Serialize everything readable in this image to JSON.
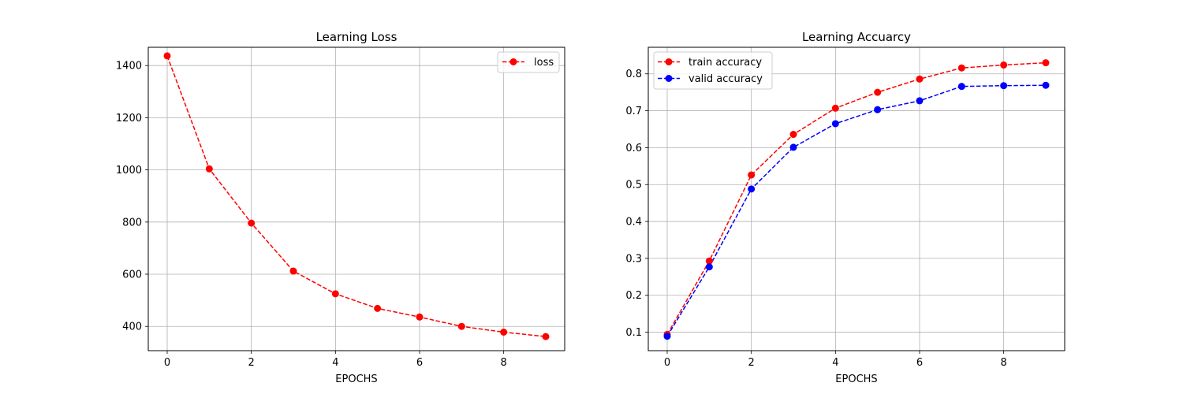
{
  "colors": {
    "red": "#ff0000",
    "blue": "#0000ff",
    "grid": "#b0b0b0"
  },
  "chart_data": [
    {
      "type": "line",
      "title": "Learning Loss",
      "xlabel": "EPOCHS",
      "ylabel": "",
      "x": [
        0,
        1,
        2,
        3,
        4,
        5,
        6,
        7,
        8,
        9
      ],
      "xlim": [
        -0.45,
        9.45
      ],
      "ylim": [
        307,
        1470
      ],
      "xticks": [
        0,
        2,
        4,
        6,
        8
      ],
      "yticks": [
        400,
        600,
        800,
        1000,
        1200,
        1400
      ],
      "grid": true,
      "legend_position": "upper right",
      "series": [
        {
          "name": "loss",
          "color": "#ff0000",
          "line_style": "dashed",
          "marker": "circle",
          "values": [
            1437,
            1004,
            796,
            612,
            525,
            469,
            436,
            400,
            378,
            361
          ]
        }
      ]
    },
    {
      "type": "line",
      "title": "Learning Accuarcy",
      "xlabel": "EPOCHS",
      "ylabel": "",
      "x": [
        0,
        1,
        2,
        3,
        4,
        5,
        6,
        7,
        8,
        9
      ],
      "xlim": [
        -0.45,
        9.45
      ],
      "ylim": [
        0.05,
        0.872
      ],
      "xticks": [
        0,
        2,
        4,
        6,
        8
      ],
      "yticks": [
        0.1,
        0.2,
        0.3,
        0.4,
        0.5,
        0.6,
        0.7,
        0.8
      ],
      "grid": true,
      "legend_position": "upper left",
      "series": [
        {
          "name": "train accuracy",
          "color": "#ff0000",
          "line_style": "dashed",
          "marker": "circle",
          "values": [
            0.094,
            0.293,
            0.526,
            0.636,
            0.707,
            0.75,
            0.786,
            0.816,
            0.824,
            0.83
          ]
        },
        {
          "name": "valid accuracy",
          "color": "#0000ff",
          "line_style": "dashed",
          "marker": "circle",
          "values": [
            0.089,
            0.277,
            0.488,
            0.601,
            0.665,
            0.703,
            0.727,
            0.766,
            0.768,
            0.769
          ]
        }
      ]
    }
  ]
}
